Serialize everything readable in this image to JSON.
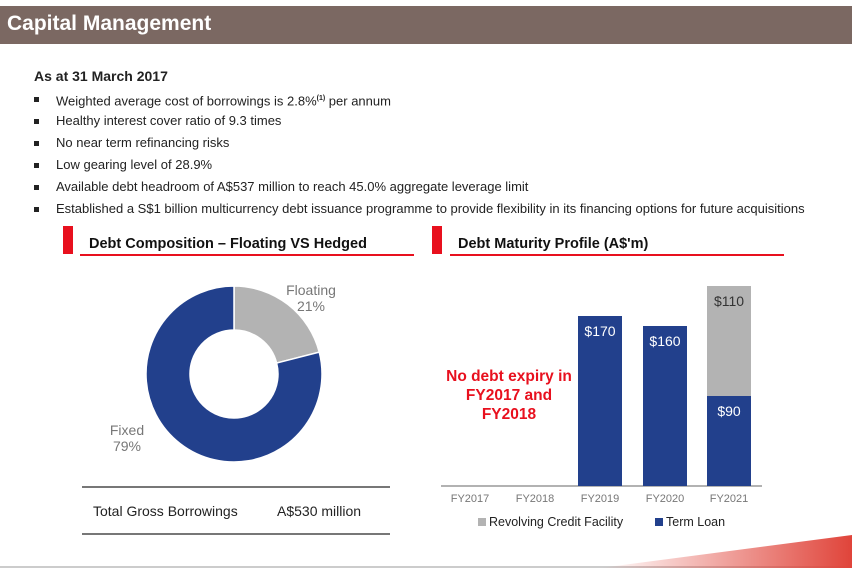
{
  "header": {
    "title": "Capital Management"
  },
  "summary": {
    "as_at": "As at 31 March 2017",
    "bullets": [
      {
        "text": "Weighted average cost of borrowings is 2.8%",
        "sup": "(1)",
        "after": " per annum"
      },
      {
        "text": "Healthy interest cover ratio of 9.3 times"
      },
      {
        "text": "No near term refinancing risks"
      },
      {
        "text": "Low gearing level of 28.9%"
      },
      {
        "text": "Available debt headroom of A$537 million to reach 45.0% aggregate leverage limit"
      },
      {
        "text": "Established a S$1 billion multicurrency debt issuance programme to provide flexibility in its financing options for future acquisitions"
      }
    ]
  },
  "colors": {
    "header": "#7b6862",
    "accent": "#e8101e",
    "navy": "#22408c",
    "grey": "#b3b3b3"
  },
  "total": {
    "label": "Total Gross Borrowings",
    "value": "A$530 million"
  },
  "chart_data": [
    {
      "type": "pie",
      "title": "Debt Composition – Floating VS Hedged",
      "donut": true,
      "slices": [
        {
          "name": "Floating",
          "value": 21,
          "label": "21%",
          "color": "#b3b3b3"
        },
        {
          "name": "Fixed",
          "value": 79,
          "label": "79%",
          "color": "#22408c"
        }
      ]
    },
    {
      "type": "bar",
      "stacked": true,
      "title": "Debt Maturity Profile (A$'m)",
      "categories": [
        "FY2017",
        "FY2018",
        "FY2019",
        "FY2020",
        "FY2021"
      ],
      "series": [
        {
          "name": "Term Loan",
          "color": "#22408c",
          "values": [
            0,
            0,
            170,
            160,
            90
          ],
          "labels": [
            "",
            "",
            "$170",
            "$160",
            "$90"
          ]
        },
        {
          "name": "Revolving Credit Facility",
          "color": "#b3b3b3",
          "values": [
            0,
            0,
            0,
            0,
            110
          ],
          "labels": [
            "",
            "",
            "",
            "",
            "$110"
          ]
        }
      ],
      "legend": [
        "Revolving Credit Facility",
        "Term Loan"
      ],
      "annotation": "No debt expiry in FY2017 and FY2018",
      "legend_position": "bottom"
    }
  ]
}
